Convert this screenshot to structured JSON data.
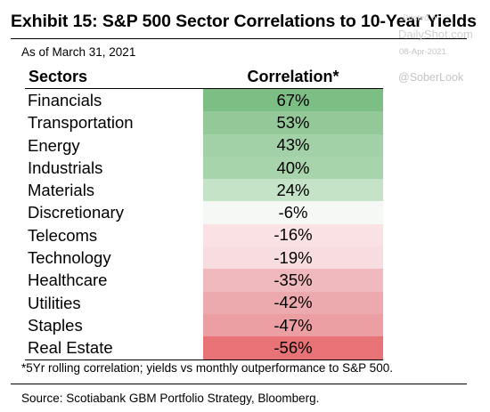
{
  "title": "Exhibit 15: S&P 500 Sector Correlations to 10-Year Yields",
  "subtitle": "As of March 31, 2021",
  "watermark": {
    "posted": "Posted o",
    "site": "DailyShot.com",
    "date": "08-Apr-2021",
    "handle": "@SoberLook"
  },
  "footnote": "*5Yr rolling correlation; yields vs monthly outperformance to S&P 500.",
  "source": "Source: Scotiabank GBM Portfolio Strategy, Bloomberg.",
  "chart_data": {
    "type": "table",
    "columns": [
      "Sectors",
      "Correlation*"
    ],
    "rows": [
      {
        "sector": "Financials",
        "value": 67,
        "label": "67%",
        "color": "#7dbe84"
      },
      {
        "sector": "Transportation",
        "value": 53,
        "label": "53%",
        "color": "#93c998"
      },
      {
        "sector": "Energy",
        "value": 43,
        "label": "43%",
        "color": "#a3d1a7"
      },
      {
        "sector": "Industrials",
        "value": 40,
        "label": "40%",
        "color": "#a8d4ab"
      },
      {
        "sector": "Materials",
        "value": 24,
        "label": "24%",
        "color": "#c5e3c7"
      },
      {
        "sector": "Discretionary",
        "value": -6,
        "label": "-6%",
        "color": "#f5f8f5"
      },
      {
        "sector": "Telecoms",
        "value": -16,
        "label": "-16%",
        "color": "#f9e1e4"
      },
      {
        "sector": "Technology",
        "value": -19,
        "label": "-19%",
        "color": "#f8dde0"
      },
      {
        "sector": "Healthcare",
        "value": -35,
        "label": "-35%",
        "color": "#f0b9bd"
      },
      {
        "sector": "Utilities",
        "value": -42,
        "label": "-42%",
        "color": "#edaaae"
      },
      {
        "sector": "Staples",
        "value": -47,
        "label": "-47%",
        "color": "#eb9fa3"
      },
      {
        "sector": "Real Estate",
        "value": -56,
        "label": "-56%",
        "color": "#e77376"
      }
    ]
  }
}
